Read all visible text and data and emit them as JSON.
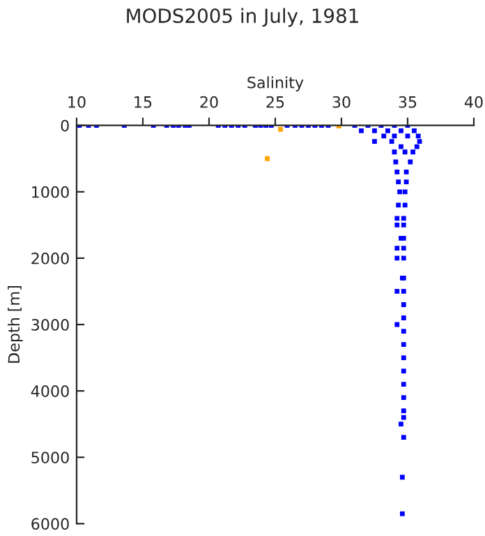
{
  "chart_data": {
    "type": "scatter",
    "title": "MODS2005 in July, 1981",
    "xlabel": "Salinity",
    "ylabel": "Depth [m]",
    "xlim": [
      10,
      40
    ],
    "xticks": [
      10,
      15,
      20,
      25,
      30,
      35,
      40
    ],
    "ylim": [
      6000,
      0
    ],
    "yticks": [
      0,
      1000,
      2000,
      3000,
      4000,
      5000,
      6000
    ],
    "marker": "square",
    "grid": false,
    "legend": false,
    "series": [
      {
        "color": "#0000ff",
        "x": [
          10.2,
          10.9,
          11.5,
          13.6,
          15.8,
          16.8,
          17.3,
          17.7,
          18.2,
          18.5,
          20.7,
          21.2,
          21.7,
          22.2,
          22.7,
          23.5,
          23.9,
          24.3,
          24.7,
          25.9,
          26.5,
          27,
          27.5,
          28,
          28.5,
          29,
          31,
          32,
          33,
          34,
          35,
          31.5,
          32.5,
          33.5,
          34.5,
          35.5,
          33.2,
          34,
          35,
          35.8,
          32.5,
          33.8,
          35.9,
          34.5,
          35.7,
          34.0,
          34.8,
          35.4,
          34.1,
          35.2,
          34.2,
          34.9,
          34.3,
          34.9,
          34.4,
          34.8,
          34.3,
          34.8,
          34.2,
          34.7,
          34.2,
          34.7,
          34.5,
          34.7,
          34.2,
          34.7,
          34.2,
          34.7,
          34.6,
          34.7,
          34.2,
          34.7,
          34.7,
          34.7,
          34.2,
          34.7,
          34.7,
          34.7,
          34.7,
          34.7,
          34.7,
          34.7,
          34.7,
          34.5,
          34.7,
          34.6,
          34.6
        ],
        "values": [
          0,
          0,
          0,
          0,
          0,
          0,
          0,
          0,
          0,
          0,
          0,
          0,
          0,
          0,
          0,
          0,
          0,
          0,
          0,
          0,
          0,
          0,
          0,
          0,
          0,
          0,
          0,
          0,
          0,
          0,
          0,
          80,
          80,
          80,
          80,
          80,
          160,
          160,
          160,
          160,
          240,
          240,
          240,
          320,
          320,
          400,
          400,
          400,
          550,
          550,
          700,
          700,
          850,
          850,
          1000,
          1000,
          1200,
          1200,
          1400,
          1400,
          1500,
          1500,
          1700,
          1700,
          1850,
          1850,
          2000,
          2000,
          2300,
          2300,
          2500,
          2500,
          2700,
          2900,
          3000,
          3100,
          3300,
          3500,
          3700,
          3900,
          4100,
          4300,
          4400,
          4500,
          4700,
          5300,
          5850
        ]
      },
      {
        "color": "#ffa500",
        "x": [
          25.4,
          29.8,
          24.4
        ],
        "values": [
          60,
          10,
          500
        ]
      }
    ]
  }
}
